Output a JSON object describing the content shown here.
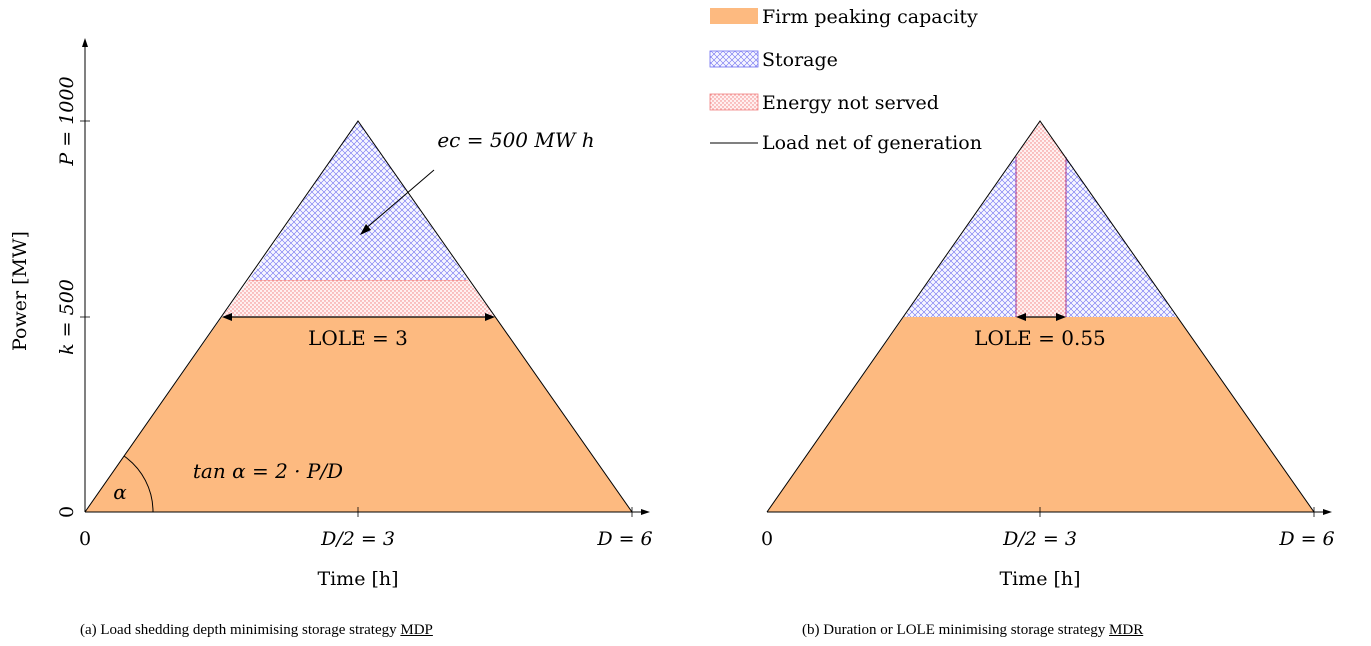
{
  "legend": {
    "items": [
      {
        "label": "Firm peaking capacity",
        "swatch": "orange-fill"
      },
      {
        "label": "Storage",
        "swatch": "blue-crosshatch"
      },
      {
        "label": "Energy not served",
        "swatch": "red-dots"
      },
      {
        "label": "Load net of generation",
        "swatch": "black-line"
      }
    ]
  },
  "colors": {
    "firm": "#fdba80",
    "storage_hatch": "#6d6df0",
    "ens_dots": "#f07a7a",
    "ens_border": "#f08080",
    "purple_border": "#a040a0",
    "outline": "#000000"
  },
  "left_plot": {
    "ylabel": "Power [MW]",
    "y_tick_p": "P = 1000",
    "y_tick_k": "k = 500",
    "y_tick_zero": "0",
    "x_tick_zero": "0",
    "x_tick_mid": "D/2 = 3",
    "x_tick_end": "D = 6",
    "xlabel": "Time [h]",
    "ec_annotation": "ec = 500 MW h",
    "lole_label": "LOLE = 3",
    "tan_label": "tan α = 2 · P/D",
    "alpha_label": "α",
    "caption_prefix": "(a) Load shedding depth minimising storage strategy",
    "caption_code": "MDP"
  },
  "right_plot": {
    "x_tick_zero": "0",
    "x_tick_mid": "D/2 = 3",
    "x_tick_end": "D = 6",
    "xlabel": "Time [h]",
    "lole_label": "LOLE = 0.55",
    "caption_prefix": "(b) Duration or LOLE minimising storage strategy",
    "caption_code": "MDR"
  }
}
